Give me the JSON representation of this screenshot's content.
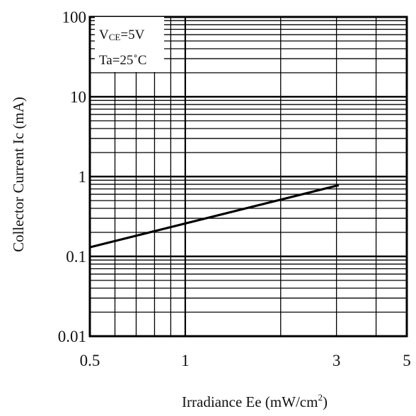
{
  "chart_data": {
    "type": "line",
    "title": "",
    "xlabel": "Irradiance Ee (mW/cm",
    "xlabel_superscript": "2",
    "xlabel_close": ")",
    "ylabel": "Collector Current Ic (mA)",
    "x_scale": "log",
    "y_scale": "log",
    "xlim": [
      0.5,
      5
    ],
    "ylim": [
      0.01,
      100
    ],
    "x_ticks": [
      0.5,
      1,
      3,
      5
    ],
    "x_tick_labels": [
      "0.5",
      "1",
      "3",
      "5"
    ],
    "y_ticks": [
      0.01,
      0.1,
      1,
      10,
      100
    ],
    "y_tick_labels": [
      "0.01",
      "0.1",
      "1",
      "10",
      "100"
    ],
    "grid": true,
    "series": [
      {
        "x": [
          0.5,
          3.05
        ],
        "y": [
          0.13,
          0.78
        ],
        "color": "#000000"
      }
    ],
    "annotations": {
      "line1_main": "V",
      "line1_sub": "CE",
      "line1_rest": "=5V",
      "line2": "Ta=25˚C"
    }
  }
}
